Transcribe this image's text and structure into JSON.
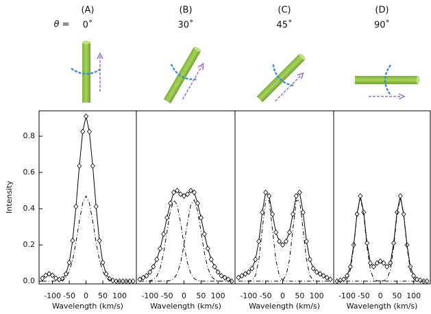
{
  "chart_data": [
    {
      "type": "line",
      "title": "(A)",
      "subtitle": "0˚",
      "annotation": "θ =",
      "xlabel": "Wavelength (km/s)",
      "ylabel": "Intensity",
      "x": [
        -130,
        -120,
        -110,
        -100,
        -90,
        -80,
        -70,
        -60,
        -50,
        -40,
        -30,
        -20,
        -10,
        0,
        10,
        20,
        30,
        40,
        50,
        60,
        70,
        80,
        90,
        100,
        110,
        120,
        130,
        140
      ],
      "series": [
        {
          "color": "#000000",
          "dash": "solid",
          "marker": "diamond",
          "values": [
            0.016,
            0.032,
            0.04,
            0.032,
            0.016,
            0.009,
            0.013,
            0.04,
            0.103,
            0.224,
            0.412,
            0.636,
            0.825,
            0.91,
            0.825,
            0.636,
            0.412,
            0.224,
            0.103,
            0.04,
            0.013,
            0.004,
            0,
            0,
            0,
            0,
            0,
            0
          ]
        },
        {
          "color": "#000000",
          "dash": "dashdot",
          "values": [
            0,
            0,
            0,
            0,
            0,
            0.002,
            0.007,
            0.021,
            0.054,
            0.117,
            0.215,
            0.332,
            0.431,
            0.47,
            0.431,
            0.332,
            0.215,
            0.117,
            0.054,
            0.021,
            0.007,
            0.002,
            0,
            0,
            0,
            0,
            0,
            0
          ]
        }
      ],
      "xlim": [
        -140,
        150
      ],
      "ylim": [
        -0.015,
        0.94
      ],
      "xticks": [
        -100,
        -50,
        0,
        50,
        100
      ],
      "yticks": [
        {
          "value": 0,
          "label": "0.0"
        },
        0.2,
        0.4,
        0.6,
        0.8
      ]
    },
    {
      "type": "line",
      "title": "(B)",
      "subtitle": "30˚",
      "xlabel": "Wavelength (km/s)",
      "x": [
        -130,
        -120,
        -110,
        -100,
        -90,
        -80,
        -70,
        -60,
        -50,
        -40,
        -30,
        -20,
        -10,
        0,
        10,
        20,
        30,
        40,
        50,
        60,
        70,
        80,
        90,
        100,
        110,
        120,
        130,
        140
      ],
      "series": [
        {
          "color": "#000000",
          "dash": "solid",
          "marker": "diamond",
          "values": [
            0.01,
            0.02,
            0.03,
            0.05,
            0.08,
            0.12,
            0.18,
            0.26,
            0.35,
            0.43,
            0.49,
            0.5,
            0.48,
            0.47,
            0.48,
            0.5,
            0.49,
            0.43,
            0.35,
            0.26,
            0.18,
            0.12,
            0.08,
            0.05,
            0.03,
            0.02,
            0.01,
            0
          ]
        },
        {
          "color": "#000000",
          "dash": "dashdot",
          "values": [
            0,
            0,
            0,
            0.002,
            0.009,
            0.027,
            0.072,
            0.156,
            0.273,
            0.388,
            0.448,
            0.421,
            0.322,
            0.2,
            0.101,
            0.042,
            0.014,
            0.004,
            0.001,
            0,
            0,
            0,
            0,
            0,
            0,
            0,
            0,
            0
          ]
        },
        {
          "color": "#000000",
          "dash": "dashdot",
          "values": [
            0,
            0,
            0,
            0,
            0,
            0,
            0,
            0,
            0.001,
            0.004,
            0.014,
            0.042,
            0.101,
            0.2,
            0.322,
            0.421,
            0.448,
            0.388,
            0.273,
            0.156,
            0.072,
            0.027,
            0.009,
            0.002,
            0,
            0,
            0,
            0
          ]
        }
      ],
      "xlim": [
        -140,
        150
      ],
      "ylim": [
        -0.015,
        0.94
      ],
      "xticks": [
        -100,
        -50,
        0,
        50,
        100
      ]
    },
    {
      "type": "line",
      "title": "(C)",
      "subtitle": "45˚",
      "xlabel": "Wavelength (km/s)",
      "x": [
        -130,
        -120,
        -110,
        -100,
        -90,
        -80,
        -70,
        -60,
        -50,
        -40,
        -30,
        -20,
        -10,
        0,
        10,
        20,
        30,
        40,
        50,
        60,
        70,
        80,
        90,
        100,
        110,
        120,
        130,
        140
      ],
      "series": [
        {
          "color": "#000000",
          "dash": "solid",
          "marker": "diamond",
          "values": [
            0.02,
            0.03,
            0.04,
            0.05,
            0.07,
            0.12,
            0.22,
            0.38,
            0.49,
            0.47,
            0.37,
            0.27,
            0.22,
            0.2,
            0.22,
            0.27,
            0.37,
            0.47,
            0.49,
            0.38,
            0.22,
            0.12,
            0.07,
            0.05,
            0.04,
            0.03,
            0.02,
            0.01
          ]
        },
        {
          "color": "#000000",
          "dash": "dashdot",
          "values": [
            0,
            0,
            0,
            0,
            0.005,
            0.031,
            0.117,
            0.285,
            0.445,
            0.445,
            0.285,
            0.117,
            0.031,
            0.005,
            0,
            0,
            0,
            0,
            0,
            0,
            0,
            0,
            0,
            0,
            0,
            0,
            0,
            0
          ]
        },
        {
          "color": "#000000",
          "dash": "dashdot",
          "values": [
            0,
            0,
            0,
            0,
            0,
            0,
            0,
            0,
            0,
            0,
            0,
            0,
            0,
            0.005,
            0.031,
            0.117,
            0.285,
            0.445,
            0.445,
            0.285,
            0.117,
            0.031,
            0.005,
            0,
            0,
            0,
            0,
            0
          ]
        }
      ],
      "xlim": [
        -140,
        150
      ],
      "ylim": [
        -0.015,
        0.94
      ],
      "xticks": [
        -100,
        -50,
        0,
        50,
        100
      ]
    },
    {
      "type": "line",
      "title": "(D)",
      "subtitle": "90˚",
      "xlabel": "Wavelength (km/s)",
      "x": [
        -130,
        -120,
        -110,
        -100,
        -90,
        -80,
        -70,
        -60,
        -50,
        -40,
        -30,
        -20,
        -10,
        0,
        10,
        20,
        30,
        40,
        50,
        60,
        70,
        80,
        90,
        100,
        110,
        120,
        130,
        140
      ],
      "series": [
        {
          "color": "#000000",
          "dash": "solid",
          "marker": "diamond",
          "values": [
            0,
            0.005,
            0.01,
            0.03,
            0.08,
            0.2,
            0.37,
            0.47,
            0.38,
            0.21,
            0.1,
            0.08,
            0.1,
            0.11,
            0.1,
            0.08,
            0.1,
            0.21,
            0.38,
            0.47,
            0.37,
            0.2,
            0.08,
            0.03,
            0.01,
            0.005,
            0,
            0
          ]
        },
        {
          "color": "#000000",
          "dash": "dashdot",
          "values": [
            0,
            0,
            0.002,
            0.013,
            0.062,
            0.189,
            0.368,
            0.46,
            0.368,
            0.189,
            0.062,
            0.013,
            0.002,
            0,
            0,
            0,
            0,
            0,
            0,
            0,
            0,
            0,
            0,
            0,
            0,
            0,
            0,
            0
          ]
        },
        {
          "color": "#000000",
          "dash": "dashdot",
          "values": [
            0,
            0,
            0,
            0,
            0,
            0,
            0,
            0,
            0,
            0,
            0,
            0,
            0,
            0,
            0.002,
            0.013,
            0.062,
            0.189,
            0.368,
            0.46,
            0.368,
            0.189,
            0.062,
            0.013,
            0.002,
            0,
            0,
            0
          ]
        }
      ],
      "xlim": [
        -140,
        150
      ],
      "ylim": [
        -0.015,
        0.94
      ],
      "xticks": [
        -100,
        -50,
        0,
        50,
        100
      ]
    }
  ]
}
